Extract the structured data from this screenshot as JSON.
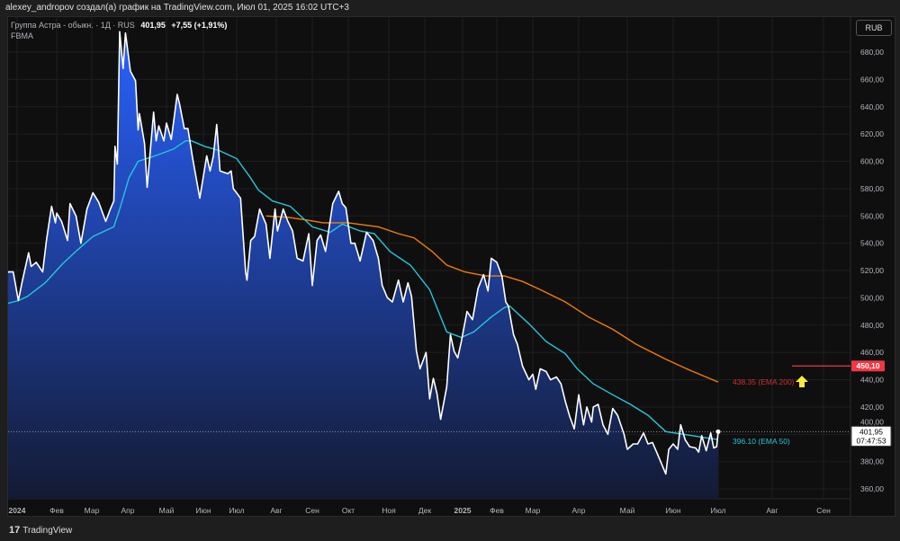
{
  "topbar": {
    "text": "alexey_andropov создал(а) график на TradingView.com, Июл 01, 2025 16:02 UTC+3"
  },
  "legend": {
    "symbol": "Группа Астра - обыкн. · 1Д · RUS",
    "last": "401,95",
    "change": "+7,55 (+1,91%)",
    "exchange": "FBMA"
  },
  "currency_button": "RUB",
  "footer": {
    "logo_glyph": "17",
    "brand": "TradingView"
  },
  "colors": {
    "price_line": "#ffffff",
    "area_top": "#2962ff",
    "area_bottom": "#131a33",
    "ema50": "#26c6da",
    "ema200": "#f57c00",
    "alert": "#f23645",
    "arrow": "#ffeb3b"
  },
  "chart_data": {
    "type": "area",
    "xlabel": "",
    "ylabel": "",
    "ylim": [
      350,
      690
    ],
    "grid": true,
    "y_ticks": [
      "360,00",
      "380,00",
      "400,00",
      "420,00",
      "440,00",
      "460,00",
      "480,00",
      "500,00",
      "520,00",
      "540,00",
      "560,00",
      "580,00",
      "600,00",
      "620,00",
      "640,00",
      "660,00",
      "680,00"
    ],
    "x_ticks": [
      "2024",
      "Фев",
      "Мар",
      "Апр",
      "Май",
      "Июн",
      "Июл",
      "Авг",
      "Сен",
      "Окт",
      "Ноя",
      "Дек",
      "2025",
      "Фев",
      "Мар",
      "Апр",
      "Май",
      "Июн",
      "Июл",
      "Авг",
      "Сен"
    ],
    "price": [
      [
        "2023-12-23",
        516
      ],
      [
        "2023-12-25",
        519
      ],
      [
        "2023-12-29",
        519
      ],
      [
        "2024-01-02",
        498
      ],
      [
        "2024-01-05",
        512
      ],
      [
        "2024-01-10",
        533
      ],
      [
        "2024-01-12",
        523
      ],
      [
        "2024-01-16",
        526
      ],
      [
        "2024-01-21",
        519
      ],
      [
        "2024-01-24",
        542
      ],
      [
        "2024-01-28",
        567
      ],
      [
        "2024-01-31",
        555
      ],
      [
        "2024-02-01",
        562
      ],
      [
        "2024-02-05",
        556
      ],
      [
        "2024-02-10",
        542
      ],
      [
        "2024-02-12",
        569
      ],
      [
        "2024-02-17",
        560
      ],
      [
        "2024-02-21",
        540
      ],
      [
        "2024-02-26",
        565
      ],
      [
        "2024-03-02",
        577
      ],
      [
        "2024-03-07",
        570
      ],
      [
        "2024-03-13",
        556
      ],
      [
        "2024-03-17",
        565
      ],
      [
        "2024-03-20",
        571
      ],
      [
        "2024-03-21",
        611
      ],
      [
        "2024-03-23",
        598
      ],
      [
        "2024-03-25",
        695
      ],
      [
        "2024-03-28",
        668
      ],
      [
        "2024-03-30",
        694
      ],
      [
        "2024-04-03",
        666
      ],
      [
        "2024-04-07",
        659
      ],
      [
        "2024-04-09",
        623
      ],
      [
        "2024-04-10",
        635
      ],
      [
        "2024-04-14",
        613
      ],
      [
        "2024-04-16",
        581
      ],
      [
        "2024-04-21",
        636
      ],
      [
        "2024-04-23",
        615
      ],
      [
        "2024-04-25",
        626
      ],
      [
        "2024-04-29",
        615
      ],
      [
        "2024-05-01",
        628
      ],
      [
        "2024-05-05",
        616
      ],
      [
        "2024-05-10",
        649
      ],
      [
        "2024-05-12",
        642
      ],
      [
        "2024-05-16",
        624
      ],
      [
        "2024-05-19",
        624
      ],
      [
        "2024-05-23",
        602
      ],
      [
        "2024-05-29",
        573
      ],
      [
        "2024-06-04",
        604
      ],
      [
        "2024-06-07",
        593
      ],
      [
        "2024-06-10",
        604
      ],
      [
        "2024-06-13",
        627
      ],
      [
        "2024-06-16",
        593
      ],
      [
        "2024-06-23",
        591
      ],
      [
        "2024-06-26",
        593
      ],
      [
        "2024-06-28",
        580
      ],
      [
        "2024-07-04",
        573
      ],
      [
        "2024-07-08",
        519
      ],
      [
        "2024-07-09",
        513
      ],
      [
        "2024-07-12",
        542
      ],
      [
        "2024-07-15",
        545
      ],
      [
        "2024-07-19",
        565
      ],
      [
        "2024-07-24",
        554
      ],
      [
        "2024-07-27",
        529
      ],
      [
        "2024-07-31",
        565
      ],
      [
        "2024-08-02",
        549
      ],
      [
        "2024-08-07",
        565
      ],
      [
        "2024-08-11",
        556
      ],
      [
        "2024-08-15",
        549
      ],
      [
        "2024-08-19",
        529
      ],
      [
        "2024-08-24",
        527
      ],
      [
        "2024-08-29",
        547
      ],
      [
        "2024-09-01",
        509
      ],
      [
        "2024-09-05",
        542
      ],
      [
        "2024-09-08",
        546
      ],
      [
        "2024-09-12",
        534
      ],
      [
        "2024-09-18",
        569
      ],
      [
        "2024-09-23",
        578
      ],
      [
        "2024-09-26",
        569
      ],
      [
        "2024-09-29",
        566
      ],
      [
        "2024-10-03",
        540
      ],
      [
        "2024-10-06",
        540
      ],
      [
        "2024-10-10",
        527
      ],
      [
        "2024-10-15",
        548
      ],
      [
        "2024-10-20",
        542
      ],
      [
        "2024-10-24",
        529
      ],
      [
        "2024-10-27",
        509
      ],
      [
        "2024-10-31",
        500
      ],
      [
        "2024-11-04",
        497
      ],
      [
        "2024-11-09",
        513
      ],
      [
        "2024-11-13",
        497
      ],
      [
        "2024-11-17",
        511
      ],
      [
        "2024-11-20",
        501
      ],
      [
        "2024-11-24",
        461
      ],
      [
        "2024-11-27",
        448
      ],
      [
        "2024-12-02",
        460
      ],
      [
        "2024-12-05",
        426
      ],
      [
        "2024-12-08",
        441
      ],
      [
        "2024-12-11",
        430
      ],
      [
        "2024-12-14",
        411
      ],
      [
        "2024-12-19",
        435
      ],
      [
        "2024-12-22",
        473
      ],
      [
        "2024-12-25",
        461
      ],
      [
        "2024-12-28",
        456
      ],
      [
        "2024-12-31",
        468
      ],
      [
        "2025-01-05",
        490
      ],
      [
        "2025-01-10",
        484
      ],
      [
        "2025-01-15",
        507
      ],
      [
        "2025-01-20",
        517
      ],
      [
        "2025-01-24",
        505
      ],
      [
        "2025-01-27",
        529
      ],
      [
        "2025-02-01",
        526
      ],
      [
        "2025-02-05",
        516
      ],
      [
        "2025-02-08",
        497
      ],
      [
        "2025-02-10",
        494
      ],
      [
        "2025-02-14",
        473
      ],
      [
        "2025-02-17",
        466
      ],
      [
        "2025-02-21",
        450
      ],
      [
        "2025-02-26",
        440
      ],
      [
        "2025-03-01",
        444
      ],
      [
        "2025-03-03",
        433
      ],
      [
        "2025-03-06",
        448
      ],
      [
        "2025-03-10",
        446
      ],
      [
        "2025-03-13",
        440
      ],
      [
        "2025-03-17",
        442
      ],
      [
        "2025-03-20",
        437
      ],
      [
        "2025-03-23",
        424
      ],
      [
        "2025-03-26",
        413
      ],
      [
        "2025-03-29",
        404
      ],
      [
        "2025-04-01",
        429
      ],
      [
        "2025-04-04",
        407
      ],
      [
        "2025-04-06",
        420
      ],
      [
        "2025-04-09",
        409
      ],
      [
        "2025-04-10",
        420
      ],
      [
        "2025-04-13",
        422
      ],
      [
        "2025-04-16",
        407
      ],
      [
        "2025-04-19",
        400
      ],
      [
        "2025-04-22",
        419
      ],
      [
        "2025-04-25",
        414
      ],
      [
        "2025-04-29",
        400
      ],
      [
        "2025-05-01",
        389
      ],
      [
        "2025-05-05",
        393
      ],
      [
        "2025-05-08",
        393
      ],
      [
        "2025-05-12",
        401
      ],
      [
        "2025-05-15",
        393
      ],
      [
        "2025-05-18",
        394
      ],
      [
        "2025-05-22",
        384
      ],
      [
        "2025-05-27",
        371
      ],
      [
        "2025-05-29",
        389
      ],
      [
        "2025-06-01",
        393
      ],
      [
        "2025-06-04",
        389
      ],
      [
        "2025-06-06",
        407
      ],
      [
        "2025-06-09",
        396
      ],
      [
        "2025-06-12",
        391
      ],
      [
        "2025-06-16",
        390
      ],
      [
        "2025-06-18",
        387
      ],
      [
        "2025-06-20",
        399
      ],
      [
        "2025-06-23",
        388
      ],
      [
        "2025-06-26",
        401
      ],
      [
        "2025-06-28",
        390
      ],
      [
        "2025-06-30",
        391
      ],
      [
        "2025-07-01",
        401.95
      ]
    ],
    "ema50": [
      [
        "2023-12-25",
        496
      ],
      [
        "2024-01-02",
        498
      ],
      [
        "2024-01-09",
        501
      ],
      [
        "2024-01-23",
        511
      ],
      [
        "2024-02-06",
        525
      ],
      [
        "2024-02-18",
        535
      ],
      [
        "2024-03-02",
        545
      ],
      [
        "2024-03-20",
        552
      ],
      [
        "2024-03-25",
        565
      ],
      [
        "2024-04-02",
        588
      ],
      [
        "2024-04-09",
        600
      ],
      [
        "2024-04-19",
        603
      ],
      [
        "2024-04-28",
        606
      ],
      [
        "2024-05-07",
        609
      ],
      [
        "2024-05-17",
        615
      ],
      [
        "2024-05-22",
        615
      ],
      [
        "2024-06-02",
        611
      ],
      [
        "2024-06-15",
        608
      ],
      [
        "2024-07-01",
        602
      ],
      [
        "2024-07-11",
        589
      ],
      [
        "2024-07-18",
        579
      ],
      [
        "2024-07-29",
        571
      ],
      [
        "2024-08-13",
        567
      ],
      [
        "2024-09-01",
        552
      ],
      [
        "2024-09-16",
        548
      ],
      [
        "2024-09-26",
        554
      ],
      [
        "2024-10-10",
        549
      ],
      [
        "2024-10-21",
        547
      ],
      [
        "2024-11-02",
        534
      ],
      [
        "2024-11-19",
        524
      ],
      [
        "2024-12-05",
        506
      ],
      [
        "2024-12-19",
        475
      ],
      [
        "2024-12-31",
        471
      ],
      [
        "2025-01-11",
        475
      ],
      [
        "2025-01-27",
        486
      ],
      [
        "2025-02-07",
        493
      ],
      [
        "2025-02-11",
        494
      ],
      [
        "2025-02-26",
        481
      ],
      [
        "2025-03-10",
        468
      ],
      [
        "2025-03-23",
        459
      ],
      [
        "2025-03-31",
        448
      ],
      [
        "2025-04-10",
        437
      ],
      [
        "2025-04-22",
        429
      ],
      [
        "2025-05-03",
        422
      ],
      [
        "2025-05-15",
        414
      ],
      [
        "2025-05-27",
        402
      ],
      [
        "2025-06-08",
        400
      ],
      [
        "2025-06-20",
        398
      ],
      [
        "2025-07-01",
        396.1
      ]
    ],
    "ema200": [
      [
        "2024-07-24",
        560
      ],
      [
        "2024-08-11",
        559
      ],
      [
        "2024-08-27",
        557
      ],
      [
        "2024-09-10",
        555
      ],
      [
        "2024-10-01",
        555
      ],
      [
        "2024-10-24",
        552
      ],
      [
        "2024-11-09",
        547
      ],
      [
        "2024-11-22",
        544
      ],
      [
        "2024-12-07",
        534
      ],
      [
        "2024-12-19",
        524
      ],
      [
        "2025-01-03",
        519
      ],
      [
        "2025-01-22",
        516
      ],
      [
        "2025-02-07",
        516
      ],
      [
        "2025-02-21",
        512
      ],
      [
        "2025-03-06",
        506
      ],
      [
        "2025-03-23",
        497
      ],
      [
        "2025-04-07",
        486
      ],
      [
        "2025-04-22",
        477
      ],
      [
        "2025-05-07",
        466
      ],
      [
        "2025-05-27",
        455
      ],
      [
        "2025-06-12",
        447
      ],
      [
        "2025-07-01",
        438.35
      ]
    ],
    "labels": {
      "ema200": "438.35 (EMA 200)",
      "ema50": "396.10 (EMA 50)",
      "alert_price": "450,10",
      "last_price": "401,95",
      "countdown": "07:47:53"
    },
    "alert_level": 450.1,
    "last_value": 401.95
  }
}
